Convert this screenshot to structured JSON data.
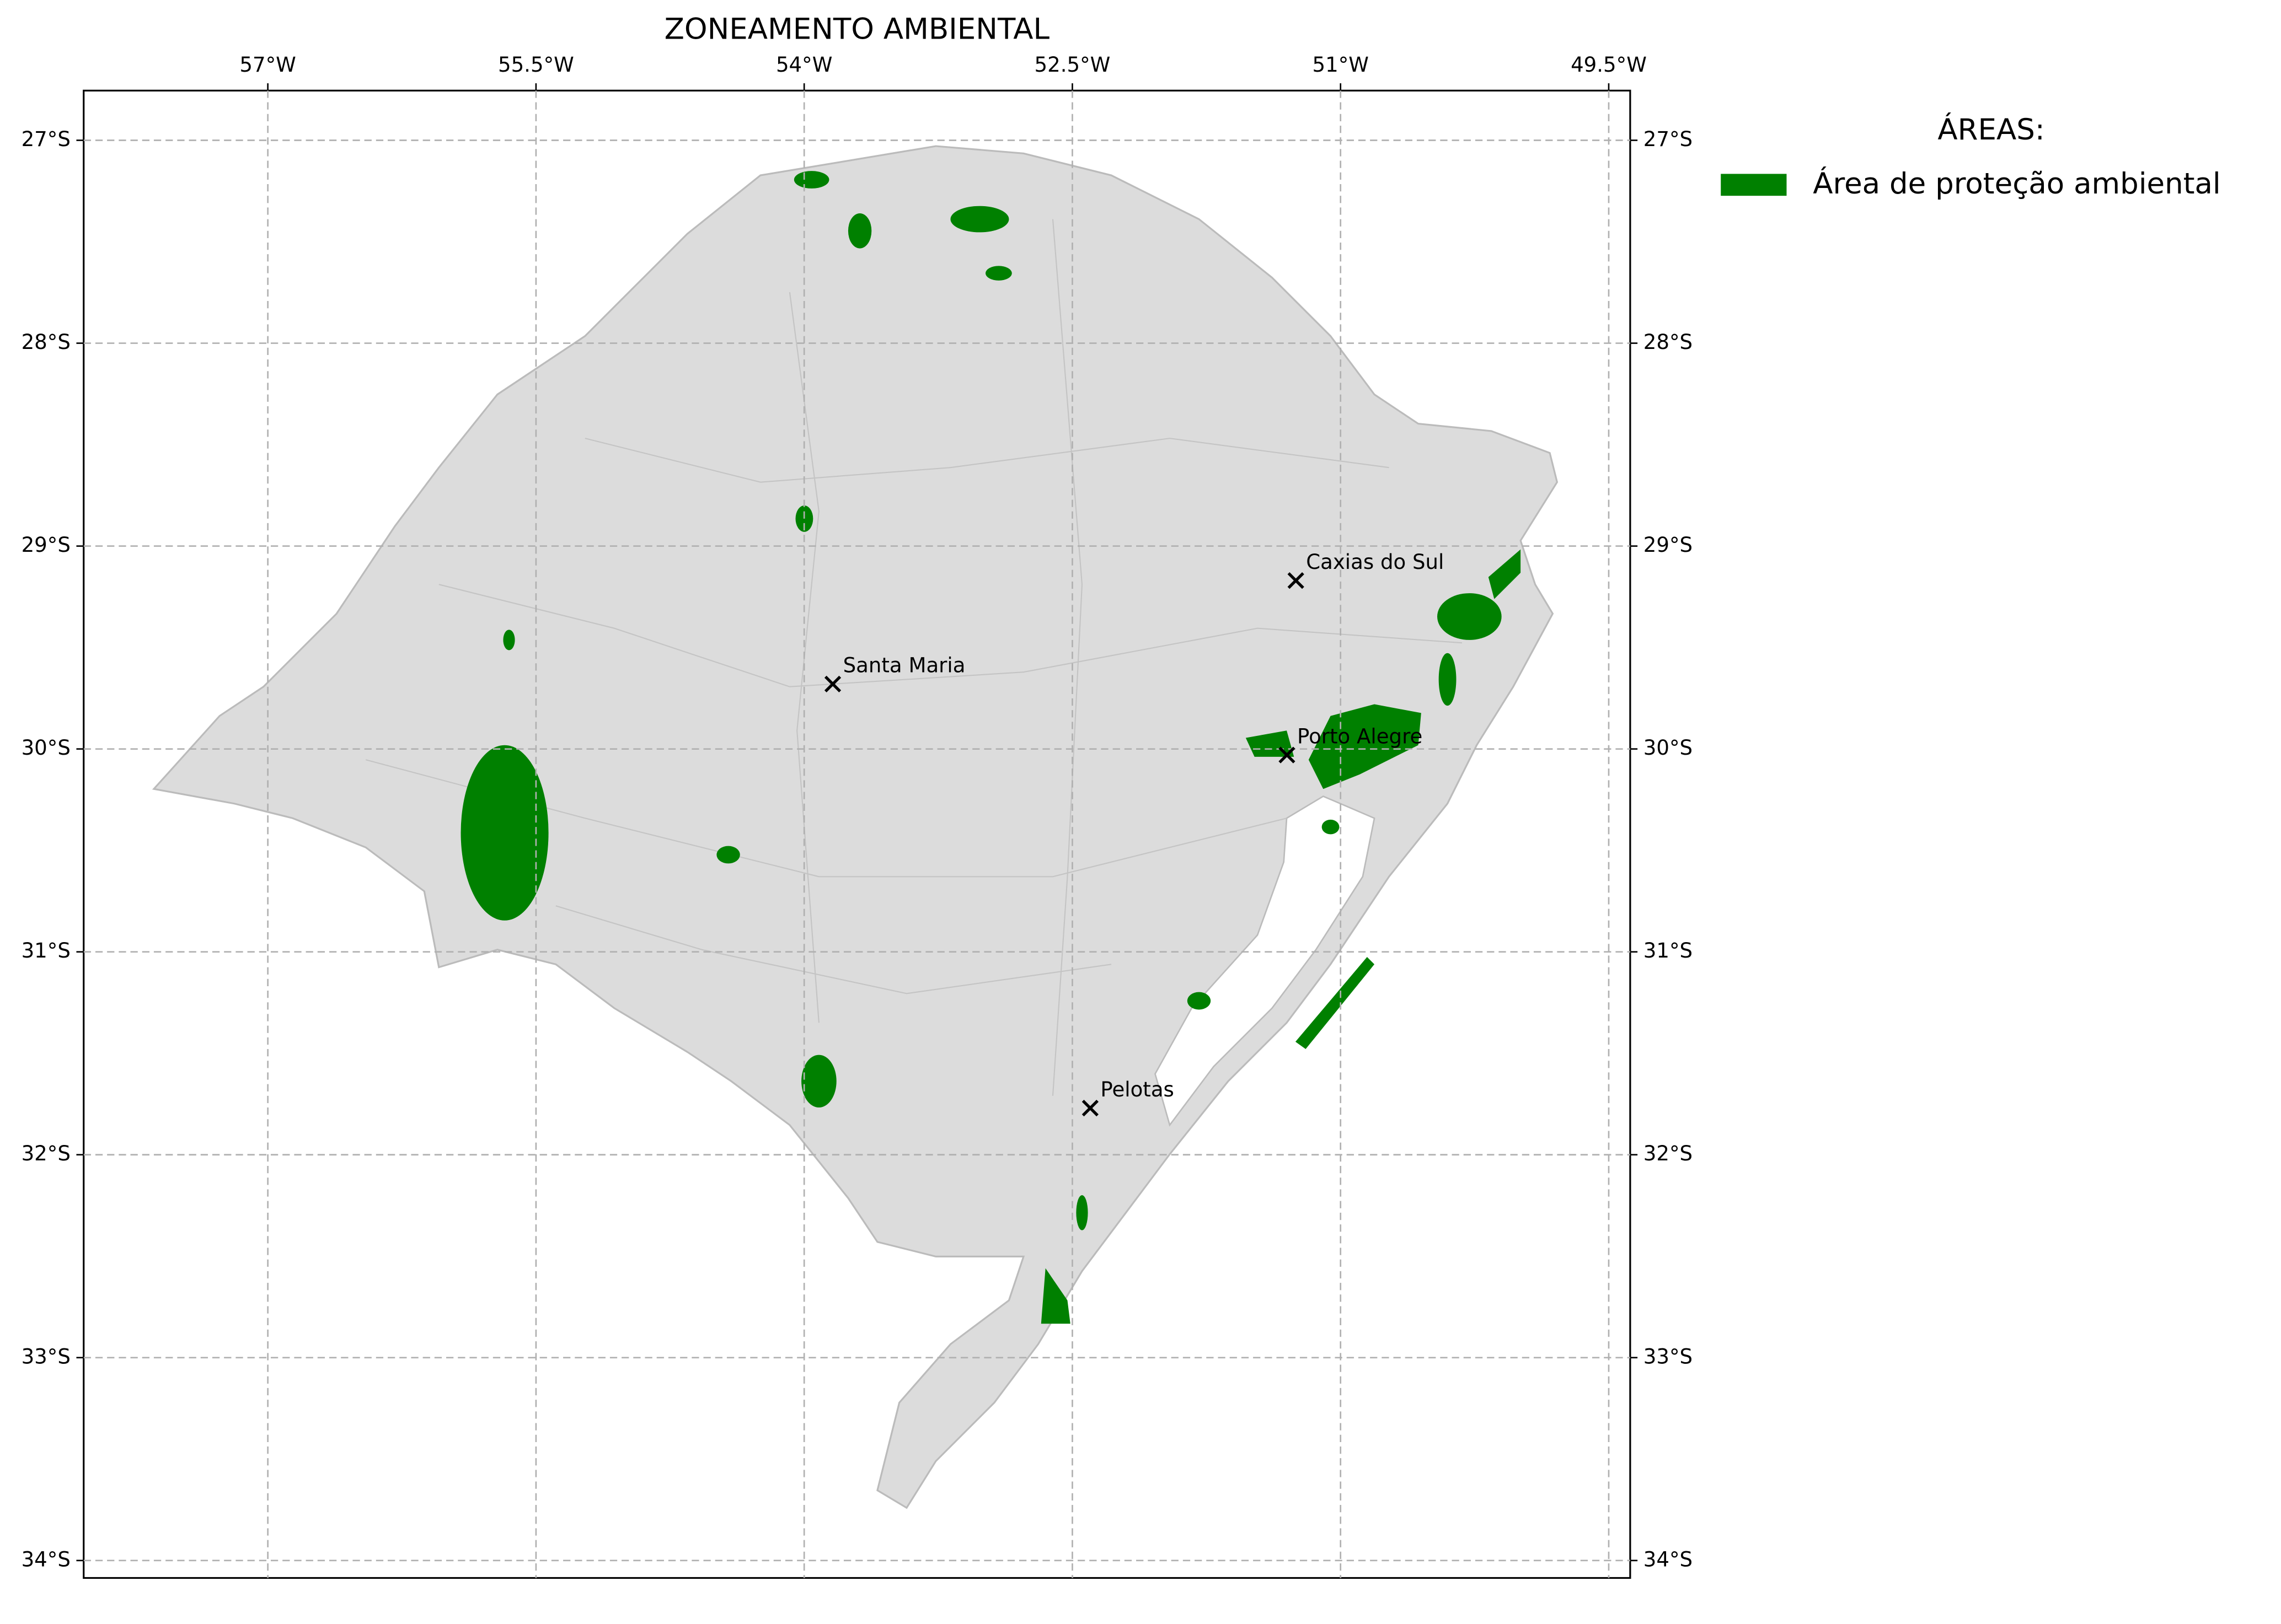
{
  "chart_data": {
    "type": "map",
    "title": "ZONEAMENTO AMBIENTAL",
    "xlim": [
      -58.03,
      -49.38
    ],
    "ylim": [
      -34.086,
      -26.755
    ],
    "xticks": [
      {
        "value": -57,
        "label": "57°W"
      },
      {
        "value": -55.5,
        "label": "55.5°W"
      },
      {
        "value": -54,
        "label": "54°W"
      },
      {
        "value": -52.5,
        "label": "52.5°W"
      },
      {
        "value": -51,
        "label": "51°W"
      },
      {
        "value": -49.5,
        "label": "49.5°W"
      }
    ],
    "yticks": [
      {
        "value": -27,
        "label": "27°S"
      },
      {
        "value": -28,
        "label": "28°S"
      },
      {
        "value": -29,
        "label": "29°S"
      },
      {
        "value": -30,
        "label": "30°S"
      },
      {
        "value": -31,
        "label": "31°S"
      },
      {
        "value": -32,
        "label": "32°S"
      },
      {
        "value": -33,
        "label": "33°S"
      },
      {
        "value": -34,
        "label": "34°S"
      }
    ],
    "grid": true,
    "legend_title": "ÁREAS:",
    "series": [
      {
        "name": "Área de proteção ambiental",
        "color": "#008000"
      }
    ],
    "points": [
      {
        "name": "Caxias do Sul",
        "lon": -51.25,
        "lat": -29.17
      },
      {
        "name": "Santa Maria",
        "lon": -53.84,
        "lat": -29.68
      },
      {
        "name": "Porto Alegre",
        "lon": -51.3,
        "lat": -30.03
      },
      {
        "name": "Pelotas",
        "lon": -52.4,
        "lat": -31.77
      }
    ]
  }
}
